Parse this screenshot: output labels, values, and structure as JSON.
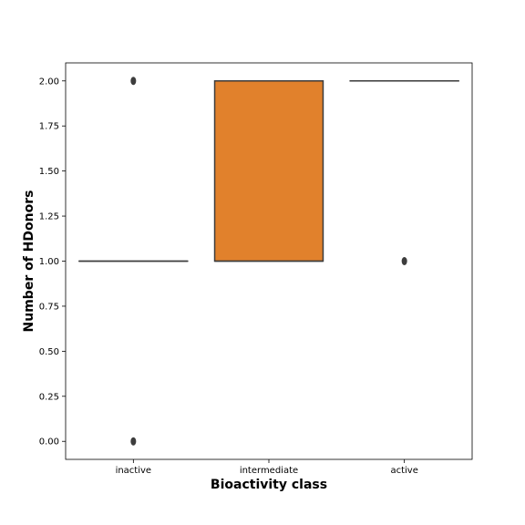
{
  "chart_data": {
    "type": "box",
    "title": "",
    "xlabel": "Bioactivity class",
    "ylabel": "Number of HDonors",
    "categories": [
      "inactive",
      "intermediate",
      "active"
    ],
    "ylim": [
      -0.1,
      2.1
    ],
    "yticks": [
      0.0,
      0.25,
      0.5,
      0.75,
      1.0,
      1.25,
      1.5,
      1.75,
      2.0
    ],
    "ytick_labels": [
      "0.00",
      "0.25",
      "0.50",
      "0.75",
      "1.00",
      "1.25",
      "1.50",
      "1.75",
      "2.00"
    ],
    "grid": false,
    "boxes": [
      {
        "category": "inactive",
        "q1": 1,
        "median": 1,
        "q3": 1,
        "whisker_low": 1,
        "whisker_high": 1,
        "outliers": [
          2,
          0
        ],
        "color": "#3a74ae"
      },
      {
        "category": "intermediate",
        "q1": 1,
        "median": 1,
        "q3": 2,
        "whisker_low": 1,
        "whisker_high": 2,
        "outliers": [],
        "color": "#e1812c"
      },
      {
        "category": "active",
        "q1": 2,
        "median": 2,
        "q3": 2,
        "whisker_low": 2,
        "whisker_high": 2,
        "outliers": [
          1
        ],
        "color": "#3a923a"
      }
    ]
  }
}
